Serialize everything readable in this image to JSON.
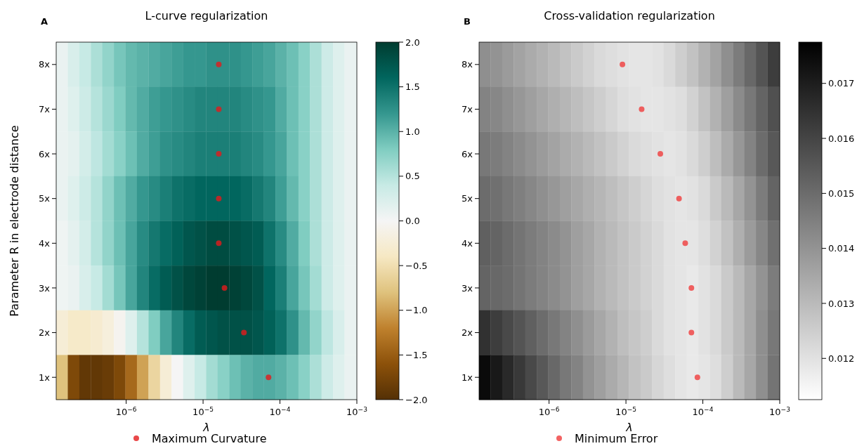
{
  "chart_data": [
    {
      "type": "heatmap",
      "title": "L-curve regularization",
      "xlabel": "λ",
      "ylabel": "Parameter R in electrode distance",
      "annotations": [
        "A"
      ],
      "log": "x",
      "xlim": [
        1.23e-07,
        0.001
      ],
      "xticks": [
        {
          "value": 1e-06,
          "label": "10$^{−6}$"
        },
        {
          "value": 1e-05,
          "label": "10$^{−5}$"
        },
        {
          "value": 0.0001,
          "label": "10$^{−4}$"
        },
        {
          "value": 0.001,
          "label": "10$^{−3}$"
        }
      ],
      "x": [
        1.46e-07,
        2.07e-07,
        2.92e-07,
        4.12e-07,
        5.82e-07,
        8.22e-07,
        1.16e-06,
        1.64e-06,
        2.32e-06,
        3.27e-06,
        4.62e-06,
        6.53e-06,
        9.23e-06,
        1.3e-05,
        1.84e-05,
        2.6e-05,
        3.67e-05,
        5.19e-05,
        7.33e-05,
        0.000104,
        0.000146,
        0.000207,
        0.000292,
        0.000412,
        0.000582,
        0.000822
      ],
      "cells": [
        [
          0.1,
          0.25,
          0.4,
          0.55,
          0.7,
          0.85,
          0.95,
          1.0,
          1.05,
          1.1,
          1.15,
          1.2,
          1.2,
          1.25,
          1.25,
          1.25,
          1.2,
          1.15,
          1.1,
          1.0,
          0.9,
          0.75,
          0.55,
          0.35,
          0.2,
          0.1
        ],
        [
          0.1,
          0.2,
          0.35,
          0.5,
          0.65,
          0.8,
          0.95,
          1.05,
          1.15,
          1.2,
          1.25,
          1.3,
          1.35,
          1.35,
          1.35,
          1.35,
          1.3,
          1.25,
          1.2,
          1.05,
          0.9,
          0.75,
          0.55,
          0.35,
          0.2,
          0.1
        ],
        [
          0.1,
          0.15,
          0.3,
          0.45,
          0.6,
          0.75,
          0.9,
          1.05,
          1.15,
          1.25,
          1.3,
          1.35,
          1.4,
          1.4,
          1.4,
          1.4,
          1.35,
          1.3,
          1.2,
          1.1,
          0.9,
          0.75,
          0.55,
          0.35,
          0.2,
          0.1
        ],
        [
          0.1,
          0.2,
          0.35,
          0.5,
          0.7,
          0.9,
          1.05,
          1.2,
          1.3,
          1.4,
          1.5,
          1.55,
          1.6,
          1.6,
          1.6,
          1.6,
          1.55,
          1.45,
          1.35,
          1.15,
          0.95,
          0.75,
          0.55,
          0.35,
          0.2,
          0.1
        ],
        [
          0.05,
          0.15,
          0.3,
          0.5,
          0.7,
          0.9,
          1.1,
          1.3,
          1.45,
          1.55,
          1.65,
          1.75,
          1.8,
          1.85,
          1.85,
          1.8,
          1.75,
          1.7,
          1.5,
          1.3,
          1.05,
          0.8,
          0.55,
          0.35,
          0.2,
          0.1
        ],
        [
          0.05,
          0.1,
          0.25,
          0.4,
          0.6,
          0.85,
          1.1,
          1.35,
          1.55,
          1.7,
          1.8,
          1.9,
          1.95,
          2.0,
          2.0,
          1.95,
          1.9,
          1.8,
          1.6,
          1.4,
          1.1,
          0.85,
          0.6,
          0.35,
          0.2,
          0.1
        ],
        [
          -0.25,
          -0.35,
          -0.35,
          -0.3,
          -0.2,
          -0.05,
          0.2,
          0.5,
          0.8,
          1.1,
          1.35,
          1.55,
          1.7,
          1.75,
          1.8,
          1.8,
          1.8,
          1.75,
          1.65,
          1.5,
          1.25,
          0.95,
          0.7,
          0.45,
          0.25,
          0.1
        ],
        [
          -0.8,
          -1.7,
          -1.9,
          -1.9,
          -1.85,
          -1.7,
          -1.4,
          -1.0,
          -0.6,
          -0.25,
          0.0,
          0.2,
          0.4,
          0.6,
          0.75,
          0.9,
          1.0,
          1.05,
          1.05,
          1.0,
          0.9,
          0.75,
          0.55,
          0.35,
          0.2,
          0.1
        ]
      ],
      "clim": [
        -2,
        2
      ],
      "cticks": [
        {
          "value": -2,
          "label": "−2.0"
        },
        {
          "value": -1.5,
          "label": "−1.5"
        },
        {
          "value": -1,
          "label": "−1.0"
        },
        {
          "value": -0.5,
          "label": "−0.5"
        },
        {
          "value": 0,
          "label": "0.0"
        },
        {
          "value": 0.5,
          "label": "0.5"
        },
        {
          "value": 1,
          "label": "1.0"
        },
        {
          "value": 1.5,
          "label": "1.5"
        },
        {
          "value": 2,
          "label": "2.0"
        }
      ],
      "colors": [
        "#543005",
        "#8c510a",
        "#bf812d",
        "#dfc27d",
        "#f6e8c3",
        "#f5f5f5",
        "#c7eae5",
        "#80cdc1",
        "#35978f",
        "#01665e",
        "#003c30"
      ],
      "ylim": [
        0.5,
        8.5
      ],
      "yticks": [
        {
          "value": 8,
          "label": "8x"
        },
        {
          "value": 7,
          "label": "7x"
        },
        {
          "value": 6,
          "label": "6x"
        },
        {
          "value": 5,
          "label": "5x"
        },
        {
          "value": 4,
          "label": "4x"
        },
        {
          "value": 3,
          "label": "3x"
        },
        {
          "value": 2,
          "label": "2x"
        },
        {
          "value": 1,
          "label": "1x"
        }
      ],
      "series": [
        {
          "type": "scatter",
          "name": "Maximum Curvature",
          "color": "#e41a1c",
          "x": [
            1.6e-05,
            1.6e-05,
            1.6e-05,
            1.6e-05,
            1.6e-05,
            1.9e-05,
            3.4e-05,
            7.1e-05
          ],
          "values": [
            8,
            7,
            6,
            5,
            4,
            3,
            2,
            1
          ]
        }
      ],
      "marker": "circle",
      "legend": "bottom"
    },
    {
      "type": "heatmap",
      "title": "Cross-validation regularization",
      "xlabel": "λ",
      "annotations": [
        "B"
      ],
      "log": "x",
      "xlim": [
        1.23e-07,
        0.001
      ],
      "xticks": [
        {
          "value": 1e-06,
          "label": "10$^{−6}$"
        },
        {
          "value": 1e-05,
          "label": "10$^{−5}$"
        },
        {
          "value": 0.0001,
          "label": "10$^{−4}$"
        },
        {
          "value": 0.001,
          "label": "10$^{−3}$"
        }
      ],
      "x": [
        1.46e-07,
        2.07e-07,
        2.92e-07,
        4.12e-07,
        5.82e-07,
        8.22e-07,
        1.16e-06,
        1.64e-06,
        2.32e-06,
        3.27e-06,
        4.62e-06,
        6.53e-06,
        9.23e-06,
        1.3e-05,
        1.84e-05,
        2.6e-05,
        3.67e-05,
        5.19e-05,
        7.33e-05,
        0.000104,
        0.000146,
        0.000207,
        0.000292,
        0.000412,
        0.000582,
        0.000822
      ],
      "cells": [
        [
          0.0141,
          0.014,
          0.0138,
          0.0136,
          0.0134,
          0.0132,
          0.013,
          0.0128,
          0.0126,
          0.0124,
          0.0122,
          0.0121,
          0.012,
          0.0119,
          0.0119,
          0.012,
          0.0122,
          0.0125,
          0.0128,
          0.0132,
          0.0136,
          0.0141,
          0.0146,
          0.0151,
          0.0156,
          0.0162
        ],
        [
          0.0144,
          0.0143,
          0.0141,
          0.0139,
          0.0137,
          0.0135,
          0.0133,
          0.0131,
          0.0129,
          0.0127,
          0.0125,
          0.0123,
          0.0121,
          0.012,
          0.0119,
          0.0119,
          0.012,
          0.0121,
          0.0124,
          0.0128,
          0.0132,
          0.0137,
          0.0142,
          0.0147,
          0.0152,
          0.0157
        ],
        [
          0.0147,
          0.0146,
          0.0144,
          0.0142,
          0.014,
          0.0138,
          0.0136,
          0.0134,
          0.0132,
          0.013,
          0.0128,
          0.0126,
          0.0124,
          0.0122,
          0.0121,
          0.012,
          0.0119,
          0.012,
          0.0122,
          0.0125,
          0.0129,
          0.0134,
          0.0139,
          0.0144,
          0.015,
          0.0155
        ],
        [
          0.015,
          0.0149,
          0.0147,
          0.0145,
          0.0143,
          0.0141,
          0.0139,
          0.0137,
          0.0135,
          0.0133,
          0.0131,
          0.0129,
          0.0127,
          0.0125,
          0.0123,
          0.0121,
          0.012,
          0.0119,
          0.012,
          0.0122,
          0.0126,
          0.013,
          0.0135,
          0.014,
          0.0146,
          0.0152
        ],
        [
          0.0153,
          0.0152,
          0.015,
          0.0148,
          0.0146,
          0.0144,
          0.0142,
          0.014,
          0.0137,
          0.0135,
          0.0132,
          0.013,
          0.0128,
          0.0126,
          0.0124,
          0.0122,
          0.012,
          0.0119,
          0.0119,
          0.0121,
          0.0124,
          0.0128,
          0.0133,
          0.0138,
          0.0143,
          0.0149
        ],
        [
          0.0152,
          0.0151,
          0.015,
          0.0148,
          0.0146,
          0.0144,
          0.0142,
          0.014,
          0.0137,
          0.0135,
          0.0132,
          0.013,
          0.0128,
          0.0126,
          0.0124,
          0.0122,
          0.012,
          0.0119,
          0.0118,
          0.012,
          0.0122,
          0.0126,
          0.013,
          0.0135,
          0.014,
          0.0146
        ],
        [
          0.0165,
          0.0162,
          0.0159,
          0.0156,
          0.0153,
          0.015,
          0.0147,
          0.0144,
          0.0141,
          0.0138,
          0.0135,
          0.0132,
          0.0129,
          0.0127,
          0.0125,
          0.0122,
          0.012,
          0.0119,
          0.0118,
          0.012,
          0.0122,
          0.0126,
          0.013,
          0.0135,
          0.0141,
          0.0147
        ],
        [
          0.0175,
          0.0171,
          0.0167,
          0.0163,
          0.0159,
          0.0155,
          0.0151,
          0.0147,
          0.0144,
          0.014,
          0.0137,
          0.0134,
          0.0131,
          0.0128,
          0.0126,
          0.0123,
          0.0121,
          0.0119,
          0.0118,
          0.0119,
          0.0121,
          0.0125,
          0.013,
          0.0135,
          0.0141,
          0.0148
        ]
      ],
      "clim": [
        0.01125,
        0.01775
      ],
      "cticks": [
        0.012,
        0.013,
        0.014,
        0.015,
        0.016,
        0.017
      ],
      "colors": [
        "#ffffff",
        "#000000"
      ],
      "ylim": [
        0.5,
        8.5
      ],
      "yticks": [
        {
          "value": 8,
          "label": "8x"
        },
        {
          "value": 7,
          "label": "7x"
        },
        {
          "value": 6,
          "label": "6x"
        },
        {
          "value": 5,
          "label": "5x"
        },
        {
          "value": 4,
          "label": "4x"
        },
        {
          "value": 3,
          "label": "3x"
        },
        {
          "value": 2,
          "label": "2x"
        },
        {
          "value": 1,
          "label": "1x"
        }
      ],
      "series": [
        {
          "type": "scatter",
          "name": "Minimum Error",
          "color": "#f03c3c",
          "x": [
            9e-06,
            1.6e-05,
            2.8e-05,
            4.9e-05,
            5.9e-05,
            7.1e-05,
            7.1e-05,
            8.5e-05
          ],
          "values": [
            8,
            7,
            6,
            5,
            4,
            3,
            2,
            1
          ]
        }
      ],
      "marker": "circle",
      "legend": "bottom"
    }
  ]
}
